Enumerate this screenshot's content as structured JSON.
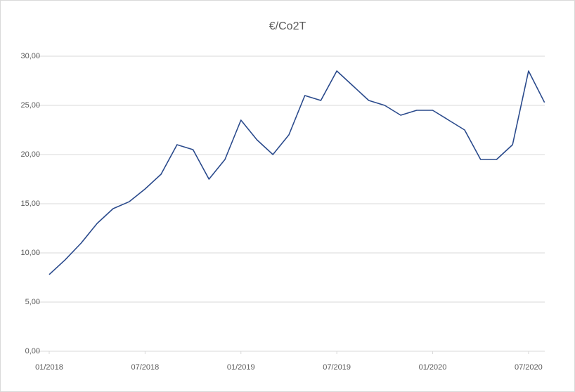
{
  "chart_data": {
    "type": "line",
    "title": "€/Co2T",
    "x": [
      "01/2018",
      "02/2018",
      "03/2018",
      "04/2018",
      "05/2018",
      "06/2018",
      "07/2018",
      "08/2018",
      "09/2018",
      "10/2018",
      "11/2018",
      "12/2018",
      "01/2019",
      "02/2019",
      "03/2019",
      "04/2019",
      "05/2019",
      "06/2019",
      "07/2019",
      "08/2019",
      "09/2019",
      "10/2019",
      "11/2019",
      "12/2019",
      "01/2020",
      "02/2020",
      "03/2020",
      "04/2020",
      "05/2020",
      "06/2020",
      "07/2020",
      "08/2020"
    ],
    "series": [
      {
        "name": "€/Co2T",
        "color": "#2a4a8c",
        "values": [
          7.8,
          9.3,
          11.0,
          13.0,
          14.5,
          15.2,
          16.5,
          18.0,
          21.0,
          20.5,
          17.5,
          19.5,
          23.5,
          21.5,
          20.0,
          22.0,
          26.0,
          25.5,
          28.5,
          27.0,
          25.5,
          25.0,
          24.0,
          24.5,
          24.5,
          23.5,
          22.5,
          19.5,
          19.5,
          21.0,
          28.5,
          25.3
        ]
      }
    ],
    "xlim": [
      "01/2018",
      "08/2020"
    ],
    "xticks": [
      "01/2018",
      "07/2018",
      "01/2019",
      "07/2019",
      "01/2020",
      "07/2020"
    ],
    "ylim": [
      0,
      30
    ],
    "yticks": [
      {
        "value": 0,
        "label": "0,00"
      },
      {
        "value": 5,
        "label": "5,00"
      },
      {
        "value": 10,
        "label": "10,00"
      },
      {
        "value": 15,
        "label": "15,00"
      },
      {
        "value": 20,
        "label": "20,00"
      },
      {
        "value": 25,
        "label": "25,00"
      },
      {
        "value": 30,
        "label": "30,00"
      }
    ],
    "grid": true
  }
}
